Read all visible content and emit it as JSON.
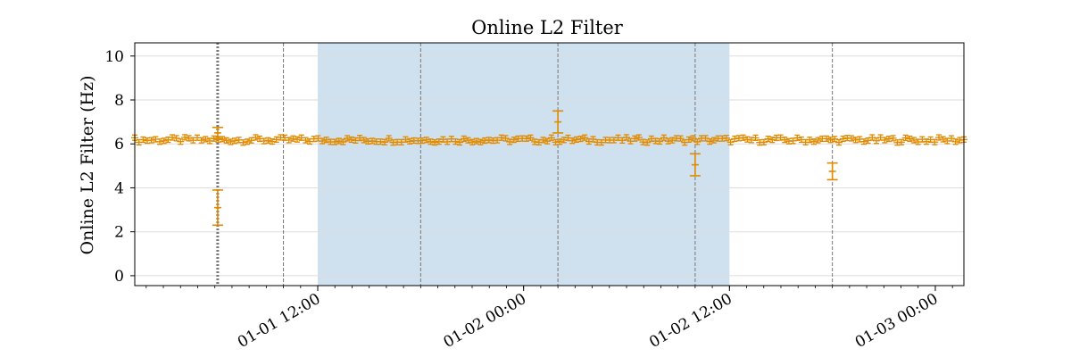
{
  "chart_data": {
    "type": "scatter",
    "title": "Online L2 Filter",
    "xlabel": "",
    "ylabel": "Online L2 Filter (Hz)",
    "x_unit": "datetime",
    "xlim": [
      "2024-01-01 01:20",
      "2024-01-03 01:40"
    ],
    "ylim": [
      -0.45,
      10.6
    ],
    "y_ticks": [
      0,
      2,
      4,
      6,
      8,
      10
    ],
    "x_ticks": [
      {
        "at": "2024-01-01 12:00",
        "label": "01-01 12:00"
      },
      {
        "at": "2024-01-02 00:00",
        "label": "01-02 00:00"
      },
      {
        "at": "2024-01-02 12:00",
        "label": "01-02 12:00"
      },
      {
        "at": "2024-01-03 00:00",
        "label": "01-03 00:00"
      }
    ],
    "grid": "horizontal",
    "shaded_region": {
      "start": "2024-01-01 12:00",
      "end": "2024-01-02 12:00",
      "color": "#cfe0ee"
    },
    "marker_color": "#e08a00",
    "vertical_lines": [
      {
        "at": "2024-01-01 06:10",
        "style": "dotted",
        "width": "thick"
      },
      {
        "at": "2024-01-01 10:00",
        "style": "dashed"
      },
      {
        "at": "2024-01-01 18:00",
        "style": "dashed"
      },
      {
        "at": "2024-01-02 02:00",
        "style": "dashed"
      },
      {
        "at": "2024-01-02 10:00",
        "style": "dashed"
      },
      {
        "at": "2024-01-02 18:00",
        "style": "dashed"
      }
    ],
    "baseline_series": {
      "start": "2024-01-01 01:20",
      "end": "2024-01-03 01:40",
      "count": 200,
      "mean": 6.18,
      "amplitude": 0.12,
      "error": 0.12
    },
    "outliers": [
      {
        "x": "2024-01-01 06:10",
        "y": 3.1,
        "err": 0.8
      },
      {
        "x": "2024-01-01 06:10",
        "y": 6.5,
        "err": 0.25
      },
      {
        "x": "2024-01-02 02:00",
        "y": 7.0,
        "err": 0.5
      },
      {
        "x": "2024-01-02 10:00",
        "y": 5.05,
        "err": 0.5
      },
      {
        "x": "2024-01-02 18:00",
        "y": 4.75,
        "err": 0.38
      }
    ]
  }
}
